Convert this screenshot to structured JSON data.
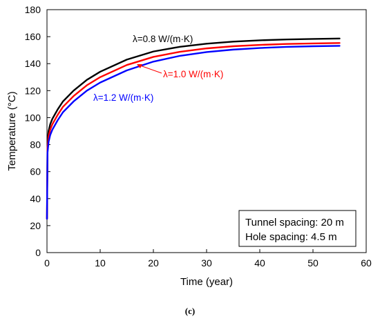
{
  "chart_data": {
    "type": "line",
    "xlabel": "Time (year)",
    "ylabel": "Temperature (°C)",
    "xlim": [
      0,
      60
    ],
    "ylim": [
      0,
      180
    ],
    "x_ticks": [
      "0",
      "10",
      "20",
      "30",
      "40",
      "50",
      "60"
    ],
    "y_ticks": [
      "0",
      "20",
      "40",
      "60",
      "80",
      "100",
      "120",
      "140",
      "160",
      "180"
    ],
    "grid": false,
    "series": [
      {
        "name": "λ=0.8 W/(m·K)",
        "color": "#000000",
        "x": [
          0,
          0.1,
          0.3,
          0.6,
          1,
          2,
          3,
          5,
          7.5,
          10,
          15,
          20,
          25,
          30,
          35,
          40,
          45,
          50,
          55
        ],
        "y": [
          25,
          82,
          90,
          95,
          99,
          106,
          112,
          120,
          128,
          134,
          143,
          149,
          152.5,
          154.8,
          156.3,
          157.3,
          157.9,
          158.3,
          158.6
        ]
      },
      {
        "name": "λ=1.0 W/(m·K)",
        "color": "#ff0000",
        "x": [
          0,
          0.1,
          0.3,
          0.6,
          1,
          2,
          3,
          5,
          7.5,
          10,
          15,
          20,
          25,
          30,
          35,
          40,
          45,
          50,
          55
        ],
        "y": [
          25,
          78,
          86,
          91,
          95,
          102,
          108,
          116,
          124,
          130,
          139,
          145,
          148.8,
          151.3,
          152.9,
          153.9,
          154.6,
          155,
          155.3
        ]
      },
      {
        "name": "λ=1.2 W/(m·K)",
        "color": "#0000ff",
        "x": [
          0,
          0.1,
          0.3,
          0.6,
          1,
          2,
          3,
          5,
          7.5,
          10,
          15,
          20,
          25,
          30,
          35,
          40,
          45,
          50,
          55
        ],
        "y": [
          25,
          74,
          82,
          87,
          91,
          98,
          104,
          112,
          120,
          126,
          135,
          141.5,
          145.8,
          148.6,
          150.4,
          151.6,
          152.4,
          152.9,
          153.2
        ]
      }
    ],
    "info_box": [
      "Tunnel spacing: 20 m",
      "Hole spacing: 4.5 m"
    ],
    "caption": "(c)"
  }
}
